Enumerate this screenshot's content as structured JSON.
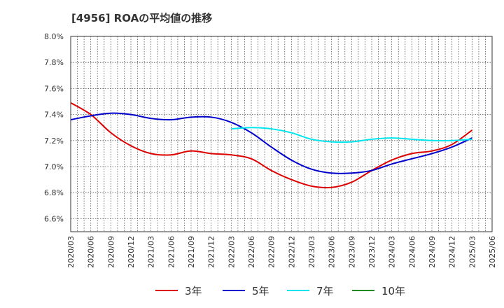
{
  "title": "[4956]  ROAの平均値の推移",
  "chart_data": {
    "type": "line",
    "title": "[4956]  ROAの平均値の推移",
    "xlabel": "",
    "ylabel": "",
    "ylim": [
      6.5,
      8.0
    ],
    "y_ticks": [
      "8.0%",
      "7.8%",
      "7.6%",
      "7.4%",
      "7.2%",
      "7.0%",
      "6.8%",
      "6.6%"
    ],
    "y_tick_values": [
      8.0,
      7.8,
      7.6,
      7.4,
      7.2,
      7.0,
      6.8,
      6.6
    ],
    "x_ticks": [
      "2020/03",
      "2020/06",
      "2020/09",
      "2020/12",
      "2021/03",
      "2021/06",
      "2021/09",
      "2021/12",
      "2022/03",
      "2022/06",
      "2022/09",
      "2022/12",
      "2023/03",
      "2023/06",
      "2023/09",
      "2023/12",
      "2024/03",
      "2024/06",
      "2024/09",
      "2024/12",
      "2025/03",
      "2025/06"
    ],
    "grid": true,
    "legend_position": "bottom",
    "series": [
      {
        "name": "3年",
        "color": "#dd0000",
        "x": [
          "2020/03",
          "2020/06",
          "2020/09",
          "2020/12",
          "2021/03",
          "2021/06",
          "2021/09",
          "2021/12",
          "2022/03",
          "2022/06",
          "2022/09",
          "2022/12",
          "2023/03",
          "2023/06",
          "2023/09",
          "2023/12",
          "2024/03",
          "2024/06",
          "2024/09",
          "2024/12",
          "2025/03"
        ],
        "values": [
          7.49,
          7.4,
          7.26,
          7.16,
          7.1,
          7.09,
          7.12,
          7.1,
          7.09,
          7.06,
          6.97,
          6.9,
          6.85,
          6.84,
          6.88,
          6.97,
          7.05,
          7.1,
          7.12,
          7.17,
          7.28
        ]
      },
      {
        "name": "5年",
        "color": "#0000cc",
        "x": [
          "2020/03",
          "2020/06",
          "2020/09",
          "2020/12",
          "2021/03",
          "2021/06",
          "2021/09",
          "2021/12",
          "2022/03",
          "2022/06",
          "2022/09",
          "2022/12",
          "2023/03",
          "2023/06",
          "2023/09",
          "2023/12",
          "2024/03",
          "2024/06",
          "2024/09",
          "2024/12",
          "2025/03"
        ],
        "values": [
          7.36,
          7.39,
          7.41,
          7.4,
          7.37,
          7.36,
          7.38,
          7.38,
          7.34,
          7.26,
          7.15,
          7.05,
          6.98,
          6.95,
          6.95,
          6.97,
          7.02,
          7.06,
          7.1,
          7.15,
          7.22
        ]
      },
      {
        "name": "7年",
        "color": "#00e5ee",
        "x": [
          "2022/03",
          "2022/06",
          "2022/09",
          "2022/12",
          "2023/03",
          "2023/06",
          "2023/09",
          "2023/12",
          "2024/03",
          "2024/06",
          "2024/09",
          "2024/12",
          "2025/03"
        ],
        "values": [
          7.29,
          7.3,
          7.29,
          7.26,
          7.21,
          7.19,
          7.19,
          7.21,
          7.22,
          7.21,
          7.2,
          7.2,
          7.21
        ]
      },
      {
        "name": "10年",
        "color": "#228b22",
        "x": [],
        "values": []
      }
    ]
  }
}
